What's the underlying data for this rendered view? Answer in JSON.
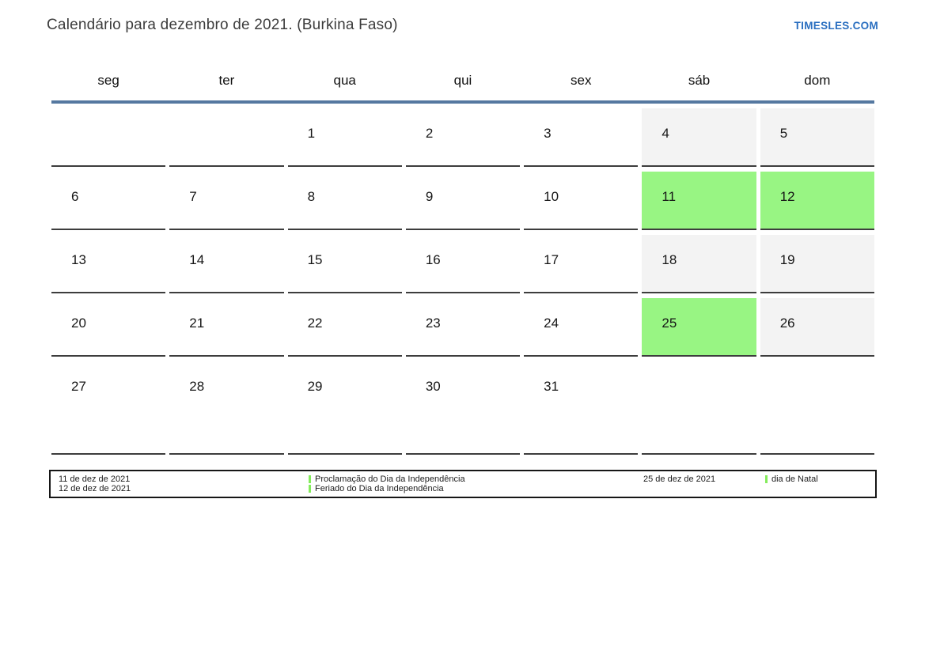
{
  "page": {
    "title": "Calendário para dezembro de 2021. (Burkina Faso)",
    "brand": "TIMESLES.COM"
  },
  "colors": {
    "accent_blue": "#5578a0",
    "brand_blue": "#2a6fc0",
    "holiday_green": "#98f583",
    "weekend_gray": "#f3f3f3",
    "marker_green": "#84ec5c",
    "border_dark": "#3d3d3d"
  },
  "calendar": {
    "weekdays": [
      "seg",
      "ter",
      "qua",
      "qui",
      "sex",
      "sáb",
      "dom"
    ],
    "weeks": [
      [
        {
          "day": "",
          "type": "empty"
        },
        {
          "day": "",
          "type": "empty"
        },
        {
          "day": "1",
          "type": "normal"
        },
        {
          "day": "2",
          "type": "normal"
        },
        {
          "day": "3",
          "type": "normal"
        },
        {
          "day": "4",
          "type": "weekend"
        },
        {
          "day": "5",
          "type": "weekend"
        }
      ],
      [
        {
          "day": "6",
          "type": "normal"
        },
        {
          "day": "7",
          "type": "normal"
        },
        {
          "day": "8",
          "type": "normal"
        },
        {
          "day": "9",
          "type": "normal"
        },
        {
          "day": "10",
          "type": "normal"
        },
        {
          "day": "11",
          "type": "holiday"
        },
        {
          "day": "12",
          "type": "holiday"
        }
      ],
      [
        {
          "day": "13",
          "type": "normal"
        },
        {
          "day": "14",
          "type": "normal"
        },
        {
          "day": "15",
          "type": "normal"
        },
        {
          "day": "16",
          "type": "normal"
        },
        {
          "day": "17",
          "type": "normal"
        },
        {
          "day": "18",
          "type": "weekend"
        },
        {
          "day": "19",
          "type": "weekend"
        }
      ],
      [
        {
          "day": "20",
          "type": "normal"
        },
        {
          "day": "21",
          "type": "normal"
        },
        {
          "day": "22",
          "type": "normal"
        },
        {
          "day": "23",
          "type": "normal"
        },
        {
          "day": "24",
          "type": "normal"
        },
        {
          "day": "25",
          "type": "holiday"
        },
        {
          "day": "26",
          "type": "weekend"
        }
      ],
      [
        {
          "day": "27",
          "type": "normal"
        },
        {
          "day": "28",
          "type": "normal"
        },
        {
          "day": "29",
          "type": "normal"
        },
        {
          "day": "30",
          "type": "normal"
        },
        {
          "day": "31",
          "type": "normal"
        },
        {
          "day": "",
          "type": "empty"
        },
        {
          "day": "",
          "type": "empty"
        }
      ]
    ]
  },
  "legend": {
    "group1_date1": "11 de dez de 2021",
    "group1_date2": "12 de dez de 2021",
    "group1_event1": "Proclamação do Dia da Independência",
    "group1_event2": "Feriado do Dia da Independência",
    "group2_date1": "25 de dez de 2021",
    "group2_event1": "dia de Natal"
  }
}
